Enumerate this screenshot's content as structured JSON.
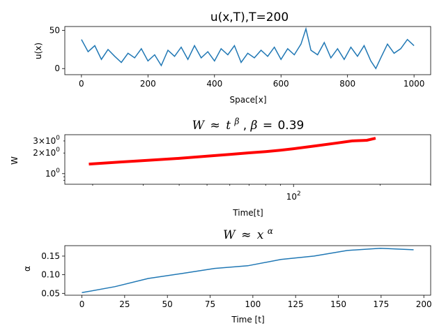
{
  "chart_data": [
    {
      "type": "line",
      "title": "u(x,T),T=200",
      "xlabel": "Space[x]",
      "ylabel": "u(x)",
      "xlim": [
        -50,
        1050
      ],
      "ylim": [
        -8,
        55
      ],
      "xticks": [
        0,
        200,
        400,
        600,
        800,
        1000
      ],
      "yticks": [
        0,
        50
      ],
      "color": "#1f77b4",
      "series": [
        {
          "x": [
            0,
            20,
            40,
            60,
            80,
            100,
            120,
            140,
            160,
            180,
            200,
            220,
            240,
            260,
            280,
            300,
            320,
            340,
            360,
            380,
            400,
            420,
            440,
            460,
            480,
            500,
            520,
            540,
            560,
            580,
            600,
            620,
            640,
            660,
            675,
            690,
            710,
            730,
            750,
            770,
            790,
            810,
            830,
            850,
            870,
            885,
            900,
            920,
            940,
            960,
            980,
            1000
          ],
          "values": [
            38,
            22,
            30,
            12,
            25,
            16,
            8,
            20,
            14,
            26,
            10,
            18,
            4,
            24,
            16,
            28,
            12,
            30,
            14,
            22,
            10,
            26,
            18,
            30,
            8,
            20,
            14,
            24,
            16,
            28,
            12,
            26,
            18,
            32,
            52,
            24,
            18,
            34,
            14,
            26,
            12,
            28,
            16,
            30,
            10,
            0,
            14,
            32,
            20,
            26,
            38,
            30
          ]
        }
      ]
    },
    {
      "type": "line",
      "title": "W ≈ t^β, β=0.39",
      "title_parts": {
        "lhs": "W",
        "op": "≈",
        "base": "t",
        "sup": "β",
        "sep": ",",
        "var": "β",
        "eq": "=",
        "val": "0.39"
      },
      "xlabel": "Time[t]",
      "ylabel": "W",
      "xscale": "log",
      "yscale": "log",
      "xlim": [
        16,
        300
      ],
      "ylim": [
        0.7,
        3.7
      ],
      "major_xticks": [
        {
          "value": 100,
          "base": "10",
          "exp": "2"
        }
      ],
      "minor_xticks": [
        20,
        30,
        40,
        50,
        60,
        70,
        80,
        90,
        200,
        300
      ],
      "major_yticks": [
        {
          "value": 1,
          "base": "10",
          "exp": "0",
          "mant": ""
        }
      ],
      "minor_yticks": [
        {
          "value": 2,
          "label_mant": "2",
          "base": "10",
          "exp": "0"
        },
        {
          "value": 3,
          "label_mant": "3",
          "base": "10",
          "exp": "0"
        },
        {
          "value": 0.8
        },
        {
          "value": 0.9
        }
      ],
      "color": "#ff0000",
      "series": [
        {
          "x": [
            19.4,
            25,
            30,
            40,
            50,
            60,
            70,
            80,
            90,
            100,
            120,
            140,
            160,
            175,
            180,
            193
          ],
          "values": [
            1.38,
            1.48,
            1.55,
            1.67,
            1.8,
            1.91,
            2.01,
            2.1,
            2.2,
            2.31,
            2.55,
            2.78,
            3.0,
            3.05,
            3.07,
            3.28
          ]
        }
      ]
    },
    {
      "type": "line",
      "title": "W ≈ x^α",
      "title_parts": {
        "lhs": "W",
        "op": "≈",
        "base": "x",
        "sup": "α"
      },
      "xlabel": "Time [t]",
      "ylabel": "α",
      "xlim": [
        -10,
        204
      ],
      "ylim": [
        0.045,
        0.178
      ],
      "xticks": [
        0,
        25,
        50,
        75,
        100,
        125,
        150,
        175,
        200
      ],
      "yticks": [
        0.05,
        0.1,
        0.15
      ],
      "ytick_labels": [
        "0.05",
        "0.10",
        "0.15"
      ],
      "color": "#1f77b4",
      "series": [
        {
          "x": [
            0,
            19.4,
            38.8,
            58.2,
            77.6,
            97,
            116.4,
            135.8,
            155.2,
            174.6,
            194
          ],
          "values": [
            0.052,
            0.068,
            0.09,
            0.103,
            0.117,
            0.124,
            0.141,
            0.15,
            0.165,
            0.171,
            0.167
          ]
        }
      ]
    }
  ]
}
